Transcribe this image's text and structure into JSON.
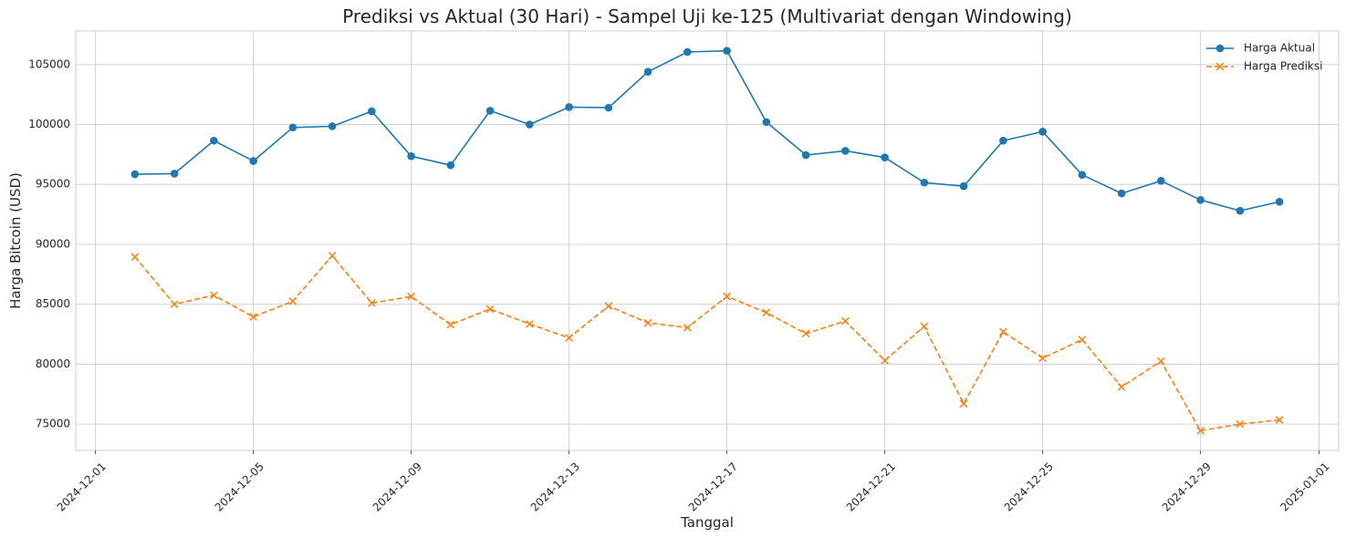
{
  "chart_data": {
    "type": "line",
    "title": "Prediksi vs Aktual (30 Hari) - Sampel Uji ke-125 (Multivariat dengan Windowing)",
    "xlabel": "Tanggal",
    "ylabel": "Harga Bitcoin (USD)",
    "x": [
      "2024-12-02",
      "2024-12-03",
      "2024-12-04",
      "2024-12-05",
      "2024-12-06",
      "2024-12-07",
      "2024-12-08",
      "2024-12-09",
      "2024-12-10",
      "2024-12-11",
      "2024-12-12",
      "2024-12-13",
      "2024-12-14",
      "2024-12-15",
      "2024-12-16",
      "2024-12-17",
      "2024-12-18",
      "2024-12-19",
      "2024-12-20",
      "2024-12-21",
      "2024-12-22",
      "2024-12-23",
      "2024-12-24",
      "2024-12-25",
      "2024-12-26",
      "2024-12-27",
      "2024-12-28",
      "2024-12-29",
      "2024-12-30",
      "2024-12-31"
    ],
    "xlim": [
      "2024-11-30T12:00",
      "2025-01-01T12:00"
    ],
    "ylim": [
      72800,
      107800
    ],
    "x_ticks": [
      "2024-12-01",
      "2024-12-05",
      "2024-12-09",
      "2024-12-13",
      "2024-12-17",
      "2024-12-21",
      "2024-12-25",
      "2024-12-29",
      "2025-01-01"
    ],
    "y_ticks": [
      75000,
      80000,
      85000,
      90000,
      95000,
      100000,
      105000
    ],
    "grid": true,
    "legend_position": "top-right",
    "series": [
      {
        "name": "Harga Aktual",
        "color": "#1f77b4",
        "marker": "circle",
        "line_style": "solid",
        "values": [
          95850,
          95900,
          98650,
          96950,
          99750,
          99850,
          101100,
          97350,
          96600,
          101150,
          100000,
          101450,
          101400,
          104400,
          106050,
          106150,
          100200,
          97450,
          97800,
          97250,
          95150,
          94850,
          98650,
          99400,
          95800,
          94250,
          95300,
          93700,
          92800,
          93550
        ]
      },
      {
        "name": "Harga Prediksi",
        "color": "#ff7f0e",
        "marker": "x",
        "line_style": "dashed",
        "values": [
          88950,
          85000,
          85750,
          83950,
          85250,
          89050,
          85100,
          85650,
          83300,
          84600,
          83350,
          82200,
          84850,
          83450,
          83050,
          85650,
          84300,
          82550,
          83600,
          80300,
          83150,
          76700,
          82700,
          80500,
          82050,
          78100,
          80250,
          74450,
          75000,
          75350
        ]
      }
    ]
  }
}
